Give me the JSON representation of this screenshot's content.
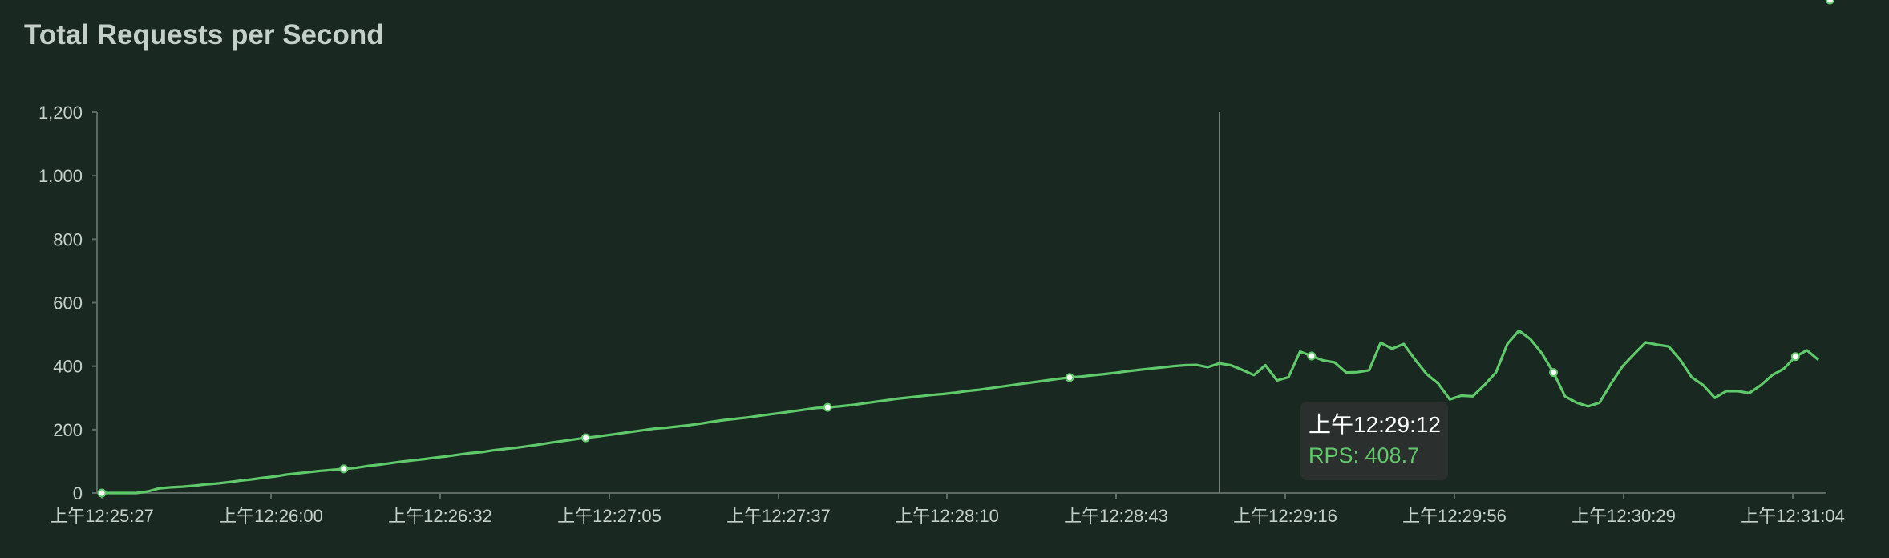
{
  "title": "Total Requests per Second",
  "colors": {
    "background": "#1a2822",
    "line": "#5fca6a",
    "text": "#c5d0ca",
    "axis": "#5d6a63"
  },
  "tooltip": {
    "time": "上午12:29:12",
    "value_text": "RPS: 408.7"
  },
  "chart_data": {
    "type": "line",
    "title": "Total Requests per Second",
    "xlabel": "",
    "ylabel": "",
    "ylim": [
      0,
      1200
    ],
    "yticks": [
      0,
      200,
      400,
      600,
      800,
      1000,
      1200
    ],
    "ytick_labels": [
      "0",
      "200",
      "400",
      "600",
      "800",
      "1,000",
      "1,200"
    ],
    "xticks": [
      "上午12:25:27",
      "上午12:26:00",
      "上午12:26:32",
      "上午12:27:05",
      "上午12:27:37",
      "上午12:28:10",
      "上午12:28:43",
      "上午12:29:16",
      "上午12:29:56",
      "上午12:30:29",
      "上午12:31:04"
    ],
    "grid": false,
    "legend": "none",
    "hover": {
      "time": "上午12:29:12",
      "value": 408.7
    },
    "series": [
      {
        "values": [
          0,
          0,
          0,
          0,
          5,
          15,
          18,
          20,
          23,
          27,
          30,
          34,
          39,
          43,
          48,
          52,
          58,
          62,
          66,
          70,
          73,
          76,
          79,
          85,
          89,
          94,
          99,
          103,
          107,
          112,
          116,
          121,
          126,
          129,
          135,
          139,
          143,
          148,
          153,
          159,
          164,
          169,
          174,
          178,
          183,
          188,
          193,
          198,
          203,
          206,
          210,
          214,
          219,
          225,
          230,
          234,
          238,
          243,
          248,
          253,
          258,
          263,
          268,
          270,
          273,
          277,
          282,
          287,
          292,
          297,
          301,
          305,
          309,
          312,
          316,
          321,
          325,
          330,
          335,
          340,
          345,
          350,
          355,
          360,
          364,
          367,
          371,
          375,
          379,
          384,
          388,
          392,
          396,
          400,
          403,
          404,
          397,
          408.7,
          403,
          388,
          372,
          403,
          355,
          365,
          446,
          432,
          418,
          412,
          380,
          381,
          387,
          474,
          455,
          470,
          420,
          375,
          345,
          295,
          307,
          305,
          340,
          380,
          470,
          512,
          485,
          440,
          380,
          305,
          285,
          273,
          285,
          345,
          400,
          438,
          475,
          468,
          462,
          420,
          365,
          340,
          300,
          321,
          321,
          315,
          340,
          372,
          392,
          430,
          450,
          420
        ],
        "markers": [
          0,
          21,
          42,
          63,
          84,
          105,
          126,
          147,
          150,
          169,
          190,
          211
        ]
      }
    ]
  }
}
